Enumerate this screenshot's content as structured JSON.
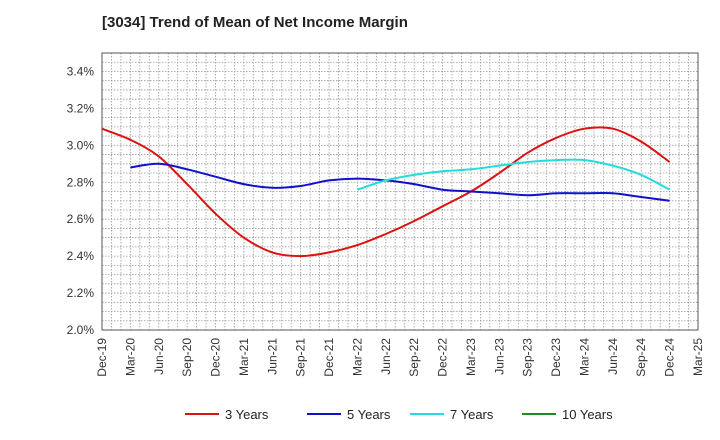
{
  "chart_data": {
    "type": "line",
    "title": "[3034]  Trend of Mean of Net Income Margin",
    "xlabel": "",
    "ylabel": "",
    "categories": [
      "Dec-19",
      "Mar-20",
      "Jun-20",
      "Sep-20",
      "Dec-20",
      "Mar-21",
      "Jun-21",
      "Sep-21",
      "Dec-21",
      "Mar-22",
      "Jun-22",
      "Sep-22",
      "Dec-22",
      "Mar-23",
      "Jun-23",
      "Sep-23",
      "Dec-23",
      "Mar-24",
      "Jun-24",
      "Sep-24",
      "Dec-24",
      "Mar-25"
    ],
    "y_ticks": [
      "2.0%",
      "2.2%",
      "2.4%",
      "2.6%",
      "2.8%",
      "3.0%",
      "3.2%",
      "3.4%"
    ],
    "ylim": [
      2.0,
      3.5
    ],
    "grid": true,
    "legend_position": "bottom",
    "series": [
      {
        "name": "3 Years",
        "color": "#dd1111",
        "values": [
          3.09,
          3.03,
          2.94,
          2.79,
          2.63,
          2.5,
          2.42,
          2.4,
          2.42,
          2.46,
          2.52,
          2.59,
          2.67,
          2.75,
          2.85,
          2.96,
          3.04,
          3.09,
          3.09,
          3.02,
          2.91,
          null
        ]
      },
      {
        "name": "5 Years",
        "color": "#1111cc",
        "values": [
          null,
          2.88,
          2.9,
          2.87,
          2.83,
          2.79,
          2.77,
          2.78,
          2.81,
          2.82,
          2.81,
          2.79,
          2.76,
          2.75,
          2.74,
          2.73,
          2.74,
          2.74,
          2.74,
          2.72,
          2.7,
          null
        ]
      },
      {
        "name": "7 Years",
        "color": "#22dddd",
        "values": [
          null,
          null,
          null,
          null,
          null,
          null,
          null,
          null,
          null,
          2.76,
          2.81,
          2.84,
          2.86,
          2.87,
          2.89,
          2.91,
          2.92,
          2.92,
          2.89,
          2.84,
          2.76,
          null
        ]
      },
      {
        "name": "10 Years",
        "color": "#228822",
        "values": [
          null,
          null,
          null,
          null,
          null,
          null,
          null,
          null,
          null,
          null,
          null,
          null,
          null,
          null,
          null,
          null,
          null,
          null,
          null,
          null,
          null,
          null
        ]
      }
    ]
  }
}
